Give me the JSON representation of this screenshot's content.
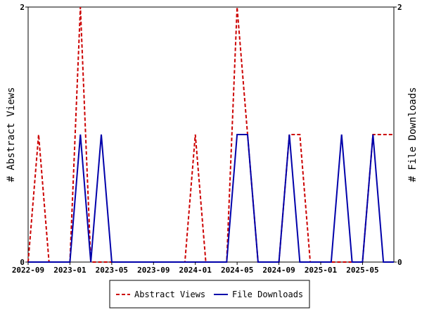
{
  "chart_data": {
    "type": "line",
    "ylabel_left": "# Abstract Views",
    "ylabel_right": "# File Downloads",
    "ylim_left": [
      0,
      2
    ],
    "ylim_right": [
      0,
      2
    ],
    "yticks_left": [
      "0",
      "2"
    ],
    "yticks_right": [
      "0",
      "2"
    ],
    "x_range": [
      "2022-09",
      "2025-08"
    ],
    "xticks": [
      "2022-09",
      "2023-01",
      "2023-05",
      "2023-09",
      "2024-01",
      "2024-05",
      "2024-09",
      "2025-01",
      "2025-05"
    ],
    "x": [
      "2022-09",
      "2022-10",
      "2022-11",
      "2022-12",
      "2023-01",
      "2023-02",
      "2023-03",
      "2023-04",
      "2023-05",
      "2023-06",
      "2023-07",
      "2023-08",
      "2023-09",
      "2023-10",
      "2023-11",
      "2023-12",
      "2024-01",
      "2024-02",
      "2024-03",
      "2024-04",
      "2024-05",
      "2024-06",
      "2024-07",
      "2024-08",
      "2024-09",
      "2024-10",
      "2024-11",
      "2024-12",
      "2025-01",
      "2025-02",
      "2025-03",
      "2025-04",
      "2025-05",
      "2025-06",
      "2025-07",
      "2025-08"
    ],
    "series": [
      {
        "name": "Abstract Views",
        "color": "#cc0000",
        "style": "dashed",
        "values": [
          0,
          1,
          0,
          0,
          0,
          2,
          0,
          0,
          0,
          0,
          0,
          0,
          0,
          0,
          0,
          0,
          1,
          0,
          0,
          0,
          2,
          1,
          0,
          0,
          0,
          1,
          1,
          0,
          0,
          0,
          0,
          0,
          0,
          1,
          1,
          1
        ]
      },
      {
        "name": "File Downloads",
        "color": "#0000aa",
        "style": "solid",
        "values": [
          0,
          0,
          0,
          0,
          0,
          1,
          0,
          1,
          0,
          0,
          0,
          0,
          0,
          0,
          0,
          0,
          0,
          0,
          0,
          0,
          1,
          1,
          0,
          0,
          0,
          1,
          0,
          0,
          0,
          0,
          1,
          0,
          0,
          1,
          0,
          0
        ]
      }
    ],
    "legend_position": "bottom-center",
    "grid": false
  }
}
